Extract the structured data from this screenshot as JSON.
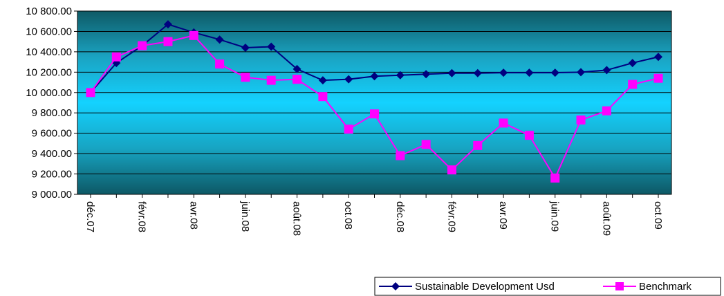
{
  "chart_data": {
    "type": "line",
    "x": [
      "déc.07",
      "janv.08",
      "févr.08",
      "mars.08",
      "avr.08",
      "mai.08",
      "juin.08",
      "juil.08",
      "août.08",
      "sept.08",
      "oct.08",
      "nov.08",
      "déc.08",
      "janv.09",
      "févr.09",
      "mars.09",
      "avr.09",
      "mai.09",
      "juin.09",
      "juil.09",
      "août.09",
      "sept.09",
      "oct.09"
    ],
    "xtick_labels": [
      "déc.07",
      "févr.08",
      "avr.08",
      "juin.08",
      "août.08",
      "oct.08",
      "déc.08",
      "févr.09",
      "avr.09",
      "juin.09",
      "août.09",
      "oct.09"
    ],
    "ylim": [
      9000,
      10800
    ],
    "yticks": [
      9000,
      9200,
      9400,
      9600,
      9800,
      10000,
      10200,
      10400,
      10600,
      10800
    ],
    "ytick_labels": [
      "9 000.00",
      "9 200.00",
      "9 400.00",
      "9 600.00",
      "9 800.00",
      "10 000.00",
      "10 200.00",
      "10 400.00",
      "10 600.00",
      "10 800.00"
    ],
    "grid": true,
    "legend_position": "bottom-right",
    "series": [
      {
        "name": "Sustainable Development Usd",
        "color": "#000080",
        "marker": "diamond",
        "values": [
          10000,
          10290,
          10460,
          10670,
          10590,
          10520,
          10440,
          10450,
          10230,
          10120,
          10130,
          10160,
          10170,
          10180,
          10190,
          10190,
          10195,
          10195,
          10195,
          10200,
          10220,
          10290,
          10350
        ]
      },
      {
        "name": "Benchmark",
        "color": "#ff00ff",
        "marker": "square",
        "values": [
          10000,
          10350,
          10460,
          10500,
          10560,
          10280,
          10150,
          10120,
          10130,
          9960,
          9640,
          9790,
          9380,
          9490,
          9240,
          9480,
          9700,
          9580,
          9160,
          9730,
          9820,
          10080,
          10140
        ]
      }
    ]
  }
}
